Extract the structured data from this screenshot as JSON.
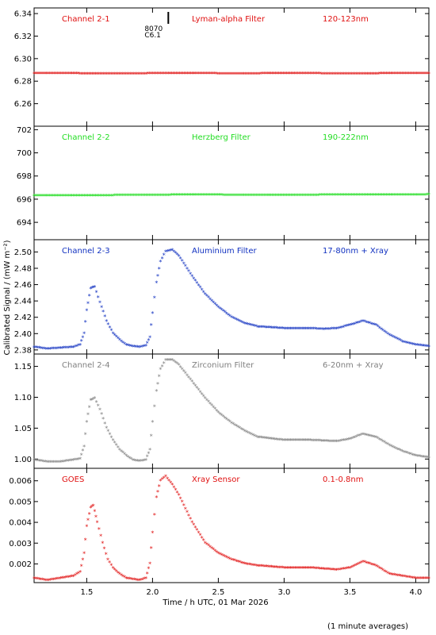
{
  "chart_data": {
    "type": "scatter",
    "shared_x": {
      "label": "Time / h UTC, 01 Mar 2026",
      "range": [
        1.1,
        4.1
      ],
      "ticks": [
        1.5,
        2.0,
        2.5,
        3.0,
        3.5,
        4.0
      ],
      "tick_labels": [
        "1.5",
        "2.0",
        "2.5",
        "3.0",
        "3.5",
        "4.0"
      ]
    },
    "ylabel": "Calibrated Signal / (mW m⁻²)",
    "footnote": "(1 minute averages)",
    "event_marker": {
      "x": 2.12,
      "label_line1": "8070",
      "label_line2": "C6.1"
    },
    "panels": [
      {
        "channel": "Channel 2-1",
        "filter": "Lyman-alpha Filter",
        "band": "120-123nm",
        "color": "#e01010",
        "ylim": [
          6.24,
          6.345
        ],
        "yticks": [
          6.26,
          6.28,
          6.3,
          6.32,
          6.34
        ],
        "ytick_labels": [
          "6.26",
          "6.28",
          "6.30",
          "6.32",
          "6.34"
        ],
        "points": [
          [
            1.1,
            6.2865
          ],
          [
            1.4,
            6.2865
          ],
          [
            1.7,
            6.2863
          ],
          [
            2.0,
            6.2865
          ],
          [
            2.3,
            6.2866
          ],
          [
            2.6,
            6.2864
          ],
          [
            2.9,
            6.2865
          ],
          [
            3.2,
            6.2865
          ],
          [
            3.5,
            6.2864
          ],
          [
            3.8,
            6.2865
          ],
          [
            4.1,
            6.2865
          ]
        ]
      },
      {
        "channel": "Channel 2-2",
        "filter": "Herzberg Filter",
        "band": "190-222nm",
        "color": "#22dd22",
        "ylim": [
          692.5,
          702.3
        ],
        "yticks": [
          694,
          696,
          698,
          700,
          702
        ],
        "ytick_labels": [
          "694",
          "696",
          "698",
          "700",
          "702"
        ],
        "points": [
          [
            1.1,
            696.3
          ],
          [
            1.4,
            696.3
          ],
          [
            1.7,
            696.3
          ],
          [
            2.0,
            696.32
          ],
          [
            2.3,
            696.35
          ],
          [
            2.6,
            696.33
          ],
          [
            2.9,
            696.33
          ],
          [
            3.2,
            696.33
          ],
          [
            3.5,
            696.35
          ],
          [
            3.8,
            696.35
          ],
          [
            4.1,
            696.37
          ]
        ]
      },
      {
        "channel": "Channel 2-3",
        "filter": "Aluminium Filter",
        "band": "17-80nm + Xray",
        "color": "#1030c0",
        "ylim": [
          2.375,
          2.515
        ],
        "yticks": [
          2.38,
          2.4,
          2.42,
          2.44,
          2.46,
          2.48,
          2.5
        ],
        "ytick_labels": [
          "2.38",
          "2.40",
          "2.42",
          "2.44",
          "2.46",
          "2.48",
          "2.50"
        ],
        "points": [
          [
            1.1,
            2.383
          ],
          [
            1.2,
            2.381
          ],
          [
            1.3,
            2.382
          ],
          [
            1.4,
            2.383
          ],
          [
            1.45,
            2.386
          ],
          [
            1.48,
            2.4
          ],
          [
            1.5,
            2.428
          ],
          [
            1.53,
            2.455
          ],
          [
            1.56,
            2.457
          ],
          [
            1.6,
            2.438
          ],
          [
            1.65,
            2.415
          ],
          [
            1.7,
            2.4
          ],
          [
            1.75,
            2.392
          ],
          [
            1.8,
            2.386
          ],
          [
            1.85,
            2.384
          ],
          [
            1.9,
            2.383
          ],
          [
            1.95,
            2.385
          ],
          [
            1.98,
            2.395
          ],
          [
            2.0,
            2.425
          ],
          [
            2.03,
            2.462
          ],
          [
            2.06,
            2.488
          ],
          [
            2.1,
            2.5
          ],
          [
            2.15,
            2.502
          ],
          [
            2.2,
            2.495
          ],
          [
            2.3,
            2.47
          ],
          [
            2.4,
            2.448
          ],
          [
            2.5,
            2.432
          ],
          [
            2.6,
            2.42
          ],
          [
            2.7,
            2.412
          ],
          [
            2.8,
            2.408
          ],
          [
            3.0,
            2.406
          ],
          [
            3.2,
            2.406
          ],
          [
            3.3,
            2.405
          ],
          [
            3.4,
            2.406
          ],
          [
            3.5,
            2.41
          ],
          [
            3.6,
            2.415
          ],
          [
            3.7,
            2.41
          ],
          [
            3.8,
            2.398
          ],
          [
            3.9,
            2.39
          ],
          [
            4.0,
            2.386
          ],
          [
            4.1,
            2.384
          ]
        ]
      },
      {
        "channel": "Channel 2-4",
        "filter": "Zirconium Filter",
        "band": "6-20nm + Xray",
        "color": "#808080",
        "ylim": [
          0.985,
          1.17
        ],
        "yticks": [
          1.0,
          1.05,
          1.1,
          1.15
        ],
        "ytick_labels": [
          "1.00",
          "1.05",
          "1.10",
          "1.15"
        ],
        "points": [
          [
            1.1,
            0.998
          ],
          [
            1.2,
            0.995
          ],
          [
            1.3,
            0.995
          ],
          [
            1.4,
            0.998
          ],
          [
            1.45,
            1.0
          ],
          [
            1.48,
            1.02
          ],
          [
            1.5,
            1.06
          ],
          [
            1.53,
            1.095
          ],
          [
            1.56,
            1.098
          ],
          [
            1.6,
            1.08
          ],
          [
            1.65,
            1.05
          ],
          [
            1.7,
            1.03
          ],
          [
            1.75,
            1.015
          ],
          [
            1.8,
            1.005
          ],
          [
            1.85,
            0.998
          ],
          [
            1.9,
            0.996
          ],
          [
            1.95,
            0.998
          ],
          [
            1.98,
            1.015
          ],
          [
            2.0,
            1.06
          ],
          [
            2.03,
            1.11
          ],
          [
            2.06,
            1.145
          ],
          [
            2.1,
            1.16
          ],
          [
            2.15,
            1.16
          ],
          [
            2.2,
            1.152
          ],
          [
            2.3,
            1.125
          ],
          [
            2.4,
            1.098
          ],
          [
            2.5,
            1.075
          ],
          [
            2.6,
            1.058
          ],
          [
            2.7,
            1.045
          ],
          [
            2.8,
            1.035
          ],
          [
            3.0,
            1.03
          ],
          [
            3.2,
            1.03
          ],
          [
            3.4,
            1.028
          ],
          [
            3.5,
            1.032
          ],
          [
            3.6,
            1.04
          ],
          [
            3.7,
            1.035
          ],
          [
            3.8,
            1.022
          ],
          [
            3.9,
            1.012
          ],
          [
            4.0,
            1.005
          ],
          [
            4.1,
            1.002
          ]
        ]
      },
      {
        "channel": "GOES",
        "filter": "Xray Sensor",
        "band": "0.1-0.8nm",
        "color": "#e01010",
        "ylim": [
          0.0011,
          0.0066
        ],
        "yticks": [
          0.002,
          0.003,
          0.004,
          0.005,
          0.006
        ],
        "ytick_labels": [
          "0.002",
          "0.003",
          "0.004",
          "0.005",
          "0.006"
        ],
        "points": [
          [
            1.1,
            0.0013
          ],
          [
            1.2,
            0.0012
          ],
          [
            1.3,
            0.0013
          ],
          [
            1.4,
            0.0014
          ],
          [
            1.45,
            0.0016
          ],
          [
            1.48,
            0.0025
          ],
          [
            1.5,
            0.0038
          ],
          [
            1.53,
            0.0047
          ],
          [
            1.55,
            0.0048
          ],
          [
            1.58,
            0.004
          ],
          [
            1.62,
            0.003
          ],
          [
            1.66,
            0.0022
          ],
          [
            1.7,
            0.0018
          ],
          [
            1.75,
            0.0015
          ],
          [
            1.8,
            0.0013
          ],
          [
            1.9,
            0.0012
          ],
          [
            1.95,
            0.0013
          ],
          [
            1.98,
            0.002
          ],
          [
            2.0,
            0.0035
          ],
          [
            2.03,
            0.0052
          ],
          [
            2.06,
            0.006
          ],
          [
            2.1,
            0.0062
          ],
          [
            2.15,
            0.0058
          ],
          [
            2.2,
            0.0053
          ],
          [
            2.3,
            0.004
          ],
          [
            2.4,
            0.003
          ],
          [
            2.5,
            0.0025
          ],
          [
            2.6,
            0.0022
          ],
          [
            2.7,
            0.002
          ],
          [
            2.8,
            0.0019
          ],
          [
            3.0,
            0.0018
          ],
          [
            3.2,
            0.0018
          ],
          [
            3.4,
            0.0017
          ],
          [
            3.5,
            0.0018
          ],
          [
            3.6,
            0.0021
          ],
          [
            3.7,
            0.0019
          ],
          [
            3.8,
            0.0015
          ],
          [
            3.9,
            0.0014
          ],
          [
            4.0,
            0.0013
          ],
          [
            4.1,
            0.0013
          ]
        ]
      }
    ]
  }
}
